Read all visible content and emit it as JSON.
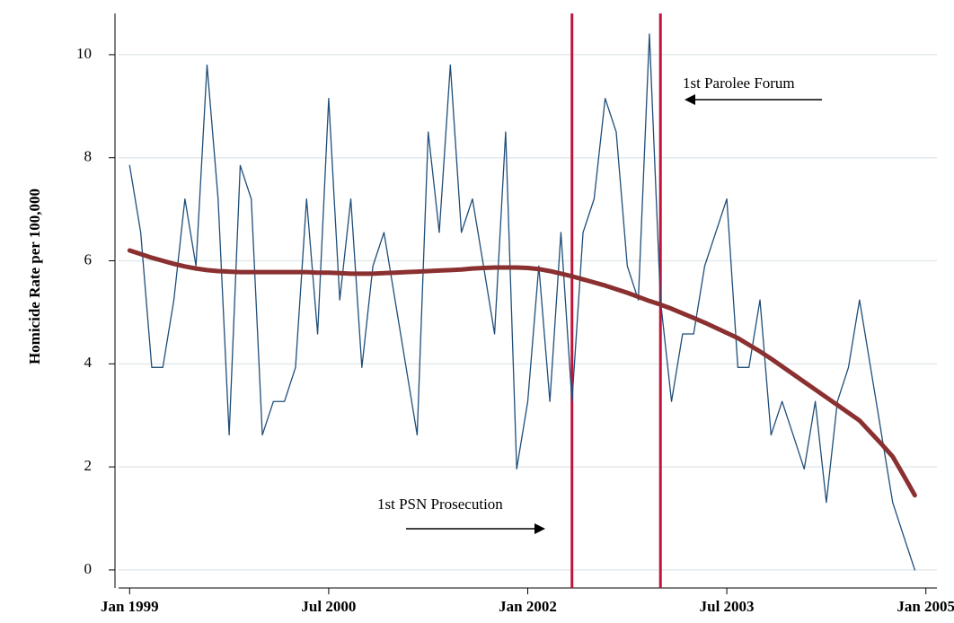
{
  "chart_data": {
    "type": "line",
    "y_label": "Homicide Rate per 100,000",
    "x": [
      "1999-01",
      "1999-02",
      "1999-03",
      "1999-04",
      "1999-05",
      "1999-06",
      "1999-07",
      "1999-08",
      "1999-09",
      "1999-10",
      "1999-11",
      "1999-12",
      "2000-01",
      "2000-02",
      "2000-03",
      "2000-04",
      "2000-05",
      "2000-06",
      "2000-07",
      "2000-08",
      "2000-09",
      "2000-10",
      "2000-11",
      "2000-12",
      "2001-01",
      "2001-02",
      "2001-03",
      "2001-04",
      "2001-05",
      "2001-06",
      "2001-07",
      "2001-08",
      "2001-09",
      "2001-10",
      "2001-11",
      "2001-12",
      "2002-01",
      "2002-02",
      "2002-03",
      "2002-04",
      "2002-05",
      "2002-06",
      "2002-07",
      "2002-08",
      "2002-09",
      "2002-10",
      "2002-11",
      "2002-12",
      "2003-01",
      "2003-02",
      "2003-03",
      "2003-04",
      "2003-05",
      "2003-06",
      "2003-07",
      "2003-08",
      "2003-09",
      "2003-10",
      "2003-11",
      "2003-12",
      "2004-01",
      "2004-02",
      "2004-03",
      "2004-04",
      "2004-05",
      "2004-06",
      "2004-07",
      "2004-08",
      "2004-09",
      "2004-10",
      "2004-11",
      "2004-12"
    ],
    "series": [
      {
        "color": "#1f4e79",
        "width": 1.3,
        "values": [
          7.85,
          6.55,
          3.93,
          3.93,
          5.24,
          7.2,
          5.9,
          9.8,
          7.2,
          2.62,
          7.85,
          7.2,
          2.62,
          3.27,
          3.27,
          3.93,
          7.2,
          4.58,
          9.15,
          5.24,
          7.2,
          3.93,
          5.9,
          6.55,
          5.24,
          3.93,
          2.62,
          8.5,
          6.55,
          9.8,
          6.55,
          7.2,
          5.9,
          4.58,
          8.5,
          1.96,
          3.27,
          5.9,
          3.27,
          6.55,
          3.27,
          6.55,
          7.2,
          9.15,
          8.5,
          5.9,
          5.24,
          10.4,
          5.24,
          3.27,
          4.58,
          4.58,
          5.9,
          6.55,
          7.2,
          3.93,
          3.93,
          5.24,
          2.62,
          3.27,
          2.62,
          1.96,
          3.27,
          1.31,
          3.27,
          3.93,
          5.24,
          3.93,
          2.62,
          1.31,
          0.65,
          0
        ]
      },
      {
        "color": "#8b3030",
        "width": 5,
        "values": [
          6.2,
          6.13,
          6.06,
          6.0,
          5.94,
          5.89,
          5.85,
          5.82,
          5.8,
          5.79,
          5.78,
          5.78,
          5.78,
          5.78,
          5.78,
          5.78,
          5.78,
          5.77,
          5.77,
          5.76,
          5.75,
          5.75,
          5.75,
          5.76,
          5.77,
          5.78,
          5.79,
          5.8,
          5.81,
          5.82,
          5.83,
          5.85,
          5.86,
          5.87,
          5.87,
          5.87,
          5.86,
          5.84,
          5.8,
          5.75,
          5.7,
          5.64,
          5.58,
          5.52,
          5.45,
          5.38,
          5.3,
          5.22,
          5.15,
          5.07,
          4.98,
          4.89,
          4.8,
          4.7,
          4.6,
          4.5,
          4.37,
          4.24,
          4.1,
          3.95,
          3.8,
          3.65,
          3.5,
          3.35,
          3.2,
          3.05,
          2.9,
          2.67,
          2.44,
          2.2,
          1.83,
          1.45
        ]
      }
    ],
    "vlines": [
      {
        "x": "2002-05",
        "color": "#c0143c"
      },
      {
        "x": "2003-01",
        "color": "#c0143c"
      }
    ],
    "annotations": [
      "1st PSN Prosecution",
      "1st Parolee Forum"
    ],
    "xlim": [
      "1998-12",
      "2005-02"
    ],
    "xticks": [
      {
        "value": "1999-01",
        "label": "Jan 1999"
      },
      {
        "value": "2000-07",
        "label": "Jul 2000"
      },
      {
        "value": "2002-01",
        "label": "Jan 2002"
      },
      {
        "value": "2003-07",
        "label": "Jul 2003"
      },
      {
        "value": "2005-01",
        "label": "Jan 2005"
      }
    ],
    "ylim": [
      -0.35,
      10.8
    ],
    "yticks": [
      0,
      2,
      4,
      6,
      8,
      10
    ],
    "grid": true
  }
}
